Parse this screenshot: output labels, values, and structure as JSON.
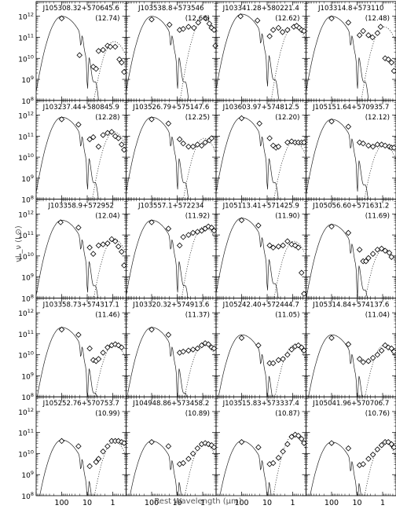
{
  "chart_data": {
    "type": "scatter",
    "layout": "5x4 grid of spectral energy distribution panels",
    "xlabel": "Rest Wavelength (μm)",
    "ylabel": "νL_ν (L⊙)",
    "xscale": "log",
    "xaxis_reversed": true,
    "yscale": "log",
    "xlim": [
      1000,
      0.3
    ],
    "ylim_log10": [
      8,
      12.7
    ],
    "xticks": [
      100,
      10,
      1
    ],
    "yticks_log10": [
      8,
      9,
      10,
      11,
      12
    ],
    "panels": [
      {
        "name": "J105308.32+570645.6",
        "value": "(12.74)",
        "peak": 12.0,
        "points": [
          [
            100,
            11.9
          ],
          [
            20,
            10.15
          ],
          [
            5.8,
            9.6
          ],
          [
            4.5,
            9.5
          ],
          [
            3.6,
            10.35
          ],
          [
            2.4,
            10.4
          ],
          [
            1.6,
            10.6
          ],
          [
            1.25,
            10.55
          ],
          [
            0.8,
            10.55
          ],
          [
            0.55,
            9.95
          ],
          [
            0.45,
            9.8
          ],
          [
            0.36,
            9.35
          ]
        ]
      },
      {
        "name": "J103538.8+573546",
        "value": "(12.66)",
        "peak": 12.0,
        "points": [
          [
            100,
            11.85
          ],
          [
            20,
            11.6
          ],
          [
            8,
            11.35
          ],
          [
            5.8,
            11.4
          ],
          [
            3.6,
            11.5
          ],
          [
            2.2,
            11.45
          ],
          [
            1.5,
            11.7
          ],
          [
            0.75,
            11.9
          ],
          [
            0.55,
            11.65
          ],
          [
            0.45,
            11.45
          ],
          [
            0.36,
            11.35
          ],
          [
            0.32,
            10.6
          ]
        ]
      },
      {
        "name": "J103341.28+580221.4",
        "value": "(12.62)",
        "peak": 12.1,
        "points": [
          [
            110,
            12.0
          ],
          [
            24,
            11.8
          ],
          [
            8,
            11.05
          ],
          [
            5.8,
            11.35
          ],
          [
            3.6,
            11.45
          ],
          [
            2.5,
            11.25
          ],
          [
            1.6,
            11.35
          ],
          [
            0.9,
            11.5
          ],
          [
            0.7,
            11.55
          ],
          [
            0.55,
            11.45
          ],
          [
            0.45,
            11.35
          ],
          [
            0.36,
            11.3
          ]
        ]
      },
      {
        "name": "J103314.8+573110",
        "value": "(12.48)",
        "peak": 12.0,
        "points": [
          [
            100,
            11.9
          ],
          [
            22,
            11.7
          ],
          [
            8,
            11.1
          ],
          [
            5.8,
            11.3
          ],
          [
            3.6,
            11.1
          ],
          [
            2.5,
            11.0
          ],
          [
            1.6,
            11.2
          ],
          [
            1.2,
            11.5
          ],
          [
            0.8,
            10.0
          ],
          [
            0.6,
            9.95
          ],
          [
            0.45,
            9.8
          ],
          [
            0.36,
            9.4
          ]
        ]
      },
      {
        "name": "J103237.44+580845.9",
        "value": "(12.28)",
        "peak": 11.9,
        "points": [
          [
            100,
            11.8
          ],
          [
            22,
            11.55
          ],
          [
            8,
            10.85
          ],
          [
            5.8,
            10.95
          ],
          [
            3.6,
            10.5
          ],
          [
            2.4,
            11.05
          ],
          [
            1.6,
            11.15
          ],
          [
            1.1,
            11.2
          ],
          [
            0.8,
            11.0
          ],
          [
            0.6,
            10.9
          ],
          [
            0.45,
            10.6
          ],
          [
            0.36,
            10.35
          ]
        ]
      },
      {
        "name": "J103526.79+575147.6",
        "value": "(12.25)",
        "peak": 11.9,
        "points": [
          [
            100,
            11.8
          ],
          [
            22,
            11.6
          ],
          [
            8,
            10.85
          ],
          [
            5.8,
            10.65
          ],
          [
            3.6,
            10.5
          ],
          [
            2.4,
            10.5
          ],
          [
            1.6,
            10.6
          ],
          [
            1.1,
            10.55
          ],
          [
            0.8,
            10.7
          ],
          [
            0.55,
            10.8
          ],
          [
            0.45,
            10.9
          ]
        ]
      },
      {
        "name": "J103603.97+574812.5",
        "value": "(12.20)",
        "peak": 11.9,
        "points": [
          [
            100,
            11.85
          ],
          [
            20,
            11.6
          ],
          [
            8,
            10.9
          ],
          [
            5.8,
            10.55
          ],
          [
            4.5,
            10.45
          ],
          [
            3.6,
            10.5
          ],
          [
            1.6,
            10.7
          ],
          [
            1.1,
            10.75
          ],
          [
            0.8,
            10.7
          ],
          [
            0.6,
            10.7
          ],
          [
            0.45,
            10.7
          ],
          [
            0.36,
            10.7
          ]
        ]
      },
      {
        "name": "J105151.64+570935.7",
        "value": "(12.12)",
        "peak": 11.8,
        "points": [
          [
            100,
            11.7
          ],
          [
            22,
            11.45
          ],
          [
            8,
            10.7
          ],
          [
            5.8,
            10.65
          ],
          [
            3.6,
            10.55
          ],
          [
            2.4,
            10.5
          ],
          [
            1.6,
            10.6
          ],
          [
            1.1,
            10.6
          ],
          [
            0.8,
            10.55
          ],
          [
            0.55,
            10.5
          ],
          [
            0.45,
            10.45
          ],
          [
            0.36,
            10.45
          ]
        ]
      },
      {
        "name": "J103358.9+572952",
        "value": "(12.04)",
        "peak": 11.7,
        "points": [
          [
            110,
            11.6
          ],
          [
            22,
            11.35
          ],
          [
            8,
            10.4
          ],
          [
            5.8,
            10.1
          ],
          [
            3.6,
            10.5
          ],
          [
            2.4,
            10.55
          ],
          [
            1.6,
            10.6
          ],
          [
            1.1,
            10.8
          ],
          [
            0.8,
            10.7
          ],
          [
            0.6,
            10.45
          ],
          [
            0.45,
            10.2
          ],
          [
            0.36,
            9.55
          ]
        ]
      },
      {
        "name": "J103557.1+572234",
        "value": "(11.92)",
        "peak": 11.7,
        "points": [
          [
            100,
            11.6
          ],
          [
            22,
            11.3
          ],
          [
            8,
            10.5
          ],
          [
            5.8,
            10.9
          ],
          [
            3.6,
            11.0
          ],
          [
            2.4,
            11.1
          ],
          [
            1.6,
            11.15
          ],
          [
            1.1,
            11.2
          ],
          [
            0.8,
            11.3
          ],
          [
            0.6,
            11.4
          ],
          [
            0.45,
            11.35
          ],
          [
            0.36,
            11.2
          ]
        ]
      },
      {
        "name": "J105113.41+571425.9",
        "value": "(11.90)",
        "peak": 11.8,
        "points": [
          [
            100,
            11.7
          ],
          [
            22,
            11.45
          ],
          [
            8,
            10.5
          ],
          [
            5.8,
            10.4
          ],
          [
            3.6,
            10.45
          ],
          [
            2.4,
            10.5
          ],
          [
            1.6,
            10.7
          ],
          [
            1.1,
            10.55
          ],
          [
            0.8,
            10.5
          ],
          [
            0.6,
            10.4
          ],
          [
            0.45,
            9.2
          ],
          [
            0.36,
            8.2
          ]
        ]
      },
      {
        "name": "J105056.60+571631.2",
        "value": "(11.69)",
        "peak": 11.5,
        "points": [
          [
            100,
            11.4
          ],
          [
            22,
            11.1
          ],
          [
            8,
            10.3
          ],
          [
            5.8,
            9.75
          ],
          [
            4.5,
            9.75
          ],
          [
            3.6,
            9.9
          ],
          [
            2.4,
            10.1
          ],
          [
            1.6,
            10.3
          ],
          [
            1.1,
            10.35
          ],
          [
            0.8,
            10.25
          ],
          [
            0.55,
            10.15
          ],
          [
            0.45,
            9.95
          ]
        ]
      },
      {
        "name": "J103358.73+574317.1",
        "value": "(11.46)",
        "peak": 11.3,
        "points": [
          [
            100,
            11.2
          ],
          [
            22,
            10.95
          ],
          [
            8,
            10.3
          ],
          [
            5.8,
            9.75
          ],
          [
            4.5,
            9.7
          ],
          [
            3.6,
            9.8
          ],
          [
            2.4,
            10.1
          ],
          [
            1.6,
            10.35
          ],
          [
            1.1,
            10.45
          ],
          [
            0.8,
            10.5
          ],
          [
            0.6,
            10.45
          ],
          [
            0.45,
            10.35
          ]
        ]
      },
      {
        "name": "J103320.32+574913.6",
        "value": "(11.37)",
        "peak": 11.3,
        "points": [
          [
            100,
            11.2
          ],
          [
            22,
            10.95
          ],
          [
            8,
            10.1
          ],
          [
            5.8,
            10.15
          ],
          [
            3.6,
            10.2
          ],
          [
            2.4,
            10.25
          ],
          [
            1.6,
            10.3
          ],
          [
            1.1,
            10.45
          ],
          [
            0.8,
            10.55
          ],
          [
            0.6,
            10.5
          ],
          [
            0.45,
            10.35
          ],
          [
            0.36,
            10.3
          ]
        ]
      },
      {
        "name": "J105242.40+572444.7",
        "value": "(11.05)",
        "peak": 10.95,
        "points": [
          [
            100,
            10.8
          ],
          [
            22,
            10.45
          ],
          [
            8,
            9.6
          ],
          [
            5.8,
            9.6
          ],
          [
            3.6,
            9.75
          ],
          [
            2.4,
            9.8
          ],
          [
            1.6,
            10.0
          ],
          [
            1.1,
            10.25
          ],
          [
            0.8,
            10.4
          ],
          [
            0.6,
            10.45
          ],
          [
            0.45,
            10.35
          ],
          [
            0.36,
            10.2
          ]
        ]
      },
      {
        "name": "J105314.84+574137.6",
        "value": "(11.04)",
        "peak": 10.95,
        "points": [
          [
            100,
            10.8
          ],
          [
            22,
            10.5
          ],
          [
            8,
            9.8
          ],
          [
            5.8,
            9.65
          ],
          [
            3.6,
            9.7
          ],
          [
            2.4,
            9.85
          ],
          [
            1.6,
            10.0
          ],
          [
            1.1,
            10.2
          ],
          [
            0.8,
            10.45
          ],
          [
            0.6,
            10.35
          ],
          [
            0.45,
            10.3
          ],
          [
            0.36,
            10.15
          ]
        ]
      },
      {
        "name": "J105252.76+570753.7",
        "value": "(10.99)",
        "peak": 10.65,
        "points": [
          [
            100,
            10.6
          ],
          [
            22,
            10.35
          ],
          [
            8,
            9.4
          ],
          [
            4.5,
            9.6
          ],
          [
            3.6,
            9.75
          ],
          [
            2.4,
            10.1
          ],
          [
            1.6,
            10.35
          ],
          [
            1.1,
            10.6
          ],
          [
            0.8,
            10.6
          ],
          [
            0.6,
            10.6
          ],
          [
            0.45,
            10.55
          ],
          [
            0.36,
            10.5
          ]
        ]
      },
      {
        "name": "J104948.86+573458.2",
        "value": "(10.89)",
        "peak": 10.6,
        "points": [
          [
            100,
            10.55
          ],
          [
            22,
            10.35
          ],
          [
            8,
            9.5
          ],
          [
            5.8,
            9.55
          ],
          [
            3.6,
            9.75
          ],
          [
            2.4,
            10.0
          ],
          [
            1.6,
            10.25
          ],
          [
            1.1,
            10.45
          ],
          [
            0.8,
            10.5
          ],
          [
            0.6,
            10.45
          ],
          [
            0.45,
            10.4
          ],
          [
            0.36,
            10.3
          ]
        ]
      },
      {
        "name": "J103515.83+573337.4",
        "value": "(10.87)",
        "peak": 10.6,
        "points": [
          [
            100,
            10.55
          ],
          [
            22,
            10.3
          ],
          [
            8,
            9.5
          ],
          [
            5.8,
            9.55
          ],
          [
            3.6,
            9.8
          ],
          [
            2.4,
            10.1
          ],
          [
            1.6,
            10.45
          ],
          [
            1.1,
            10.8
          ],
          [
            0.8,
            10.9
          ],
          [
            0.6,
            10.85
          ],
          [
            0.45,
            10.7
          ],
          [
            0.36,
            10.5
          ]
        ]
      },
      {
        "name": "J105041.96+570706.7",
        "value": "(10.76)",
        "peak": 10.55,
        "points": [
          [
            100,
            10.5
          ],
          [
            22,
            10.25
          ],
          [
            8,
            9.45
          ],
          [
            5.8,
            9.5
          ],
          [
            3.6,
            9.75
          ],
          [
            2.4,
            9.95
          ],
          [
            1.6,
            10.2
          ],
          [
            1.1,
            10.4
          ],
          [
            0.8,
            10.55
          ],
          [
            0.6,
            10.55
          ],
          [
            0.45,
            10.45
          ],
          [
            0.36,
            10.3
          ]
        ]
      }
    ]
  }
}
